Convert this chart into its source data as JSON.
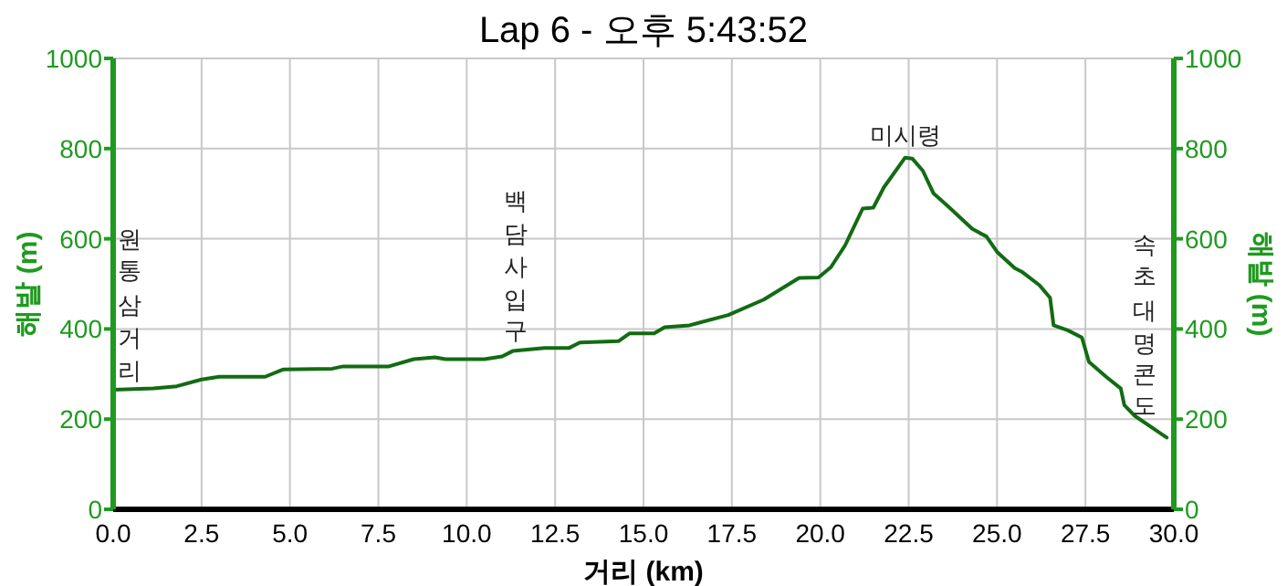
{
  "chart_data": {
    "type": "line",
    "title": "Lap 6 - 오후 5:43:52",
    "xlabel": "거리 (km)",
    "ylabel": "해발 (m)",
    "y2label": "해발 (m)",
    "x": [
      0,
      1.14,
      1.8,
      2.5,
      3.0,
      4.3,
      4.8,
      6.2,
      6.5,
      7.8,
      8.5,
      9.1,
      9.4,
      10.5,
      11.0,
      11.3,
      12.2,
      12.9,
      13.2,
      14.3,
      14.6,
      15.3,
      15.6,
      16.3,
      17.4,
      18.4,
      19.4,
      19.95,
      20.3,
      20.7,
      21.2,
      21.5,
      21.8,
      22.4,
      22.6,
      22.9,
      23.2,
      23.6,
      24.3,
      24.7,
      25.0,
      25.5,
      25.7,
      26.2,
      26.5,
      26.6,
      27.0,
      27.4,
      27.6,
      28.1,
      28.5,
      28.6,
      28.9,
      29.8
    ],
    "series": [
      {
        "color": "#136b13",
        "values": [
          265,
          268,
          273,
          288,
          294,
          294,
          310,
          312,
          317,
          317,
          333,
          337,
          333,
          333,
          339,
          351,
          358,
          358,
          370,
          373,
          390,
          390,
          404,
          408,
          431,
          465,
          513,
          514,
          537,
          585,
          667,
          669,
          714,
          780,
          778,
          751,
          701,
          673,
          622,
          605,
          571,
          535,
          527,
          497,
          469,
          408,
          397,
          381,
          327,
          293,
          268,
          231,
          207,
          159
        ]
      }
    ],
    "xlim": [
      0,
      30
    ],
    "xticks": [
      {
        "value": 0,
        "label": "0.0"
      },
      {
        "value": 2.5,
        "label": "2.5"
      },
      {
        "value": 5,
        "label": "5.0"
      },
      {
        "value": 7.5,
        "label": "7.5"
      },
      {
        "value": 10,
        "label": "10.0"
      },
      {
        "value": 12.5,
        "label": "12.5"
      },
      {
        "value": 15,
        "label": "15.0"
      },
      {
        "value": 17.5,
        "label": "17.5"
      },
      {
        "value": 20,
        "label": "20.0"
      },
      {
        "value": 22.5,
        "label": "22.5"
      },
      {
        "value": 25,
        "label": "25.0"
      },
      {
        "value": 27.5,
        "label": "27.5"
      },
      {
        "value": 30,
        "label": "30.0"
      }
    ],
    "ylim": [
      0,
      1000
    ],
    "yticks": [
      0,
      200,
      400,
      600,
      800,
      1000
    ],
    "y2lim": [
      0,
      1000
    ],
    "y2ticks": [
      0,
      200,
      400,
      600,
      800,
      1000
    ],
    "grid": true,
    "annotations": [
      {
        "text": "원통삼거리",
        "x": 0.5,
        "y": 265
      },
      {
        "text": "백담사입구",
        "x": 11.4,
        "y": 350
      },
      {
        "text": "미시령",
        "x": 22.4,
        "y": 780
      },
      {
        "text": "속초대명콘도",
        "x": 29.2,
        "y": 180
      }
    ]
  }
}
